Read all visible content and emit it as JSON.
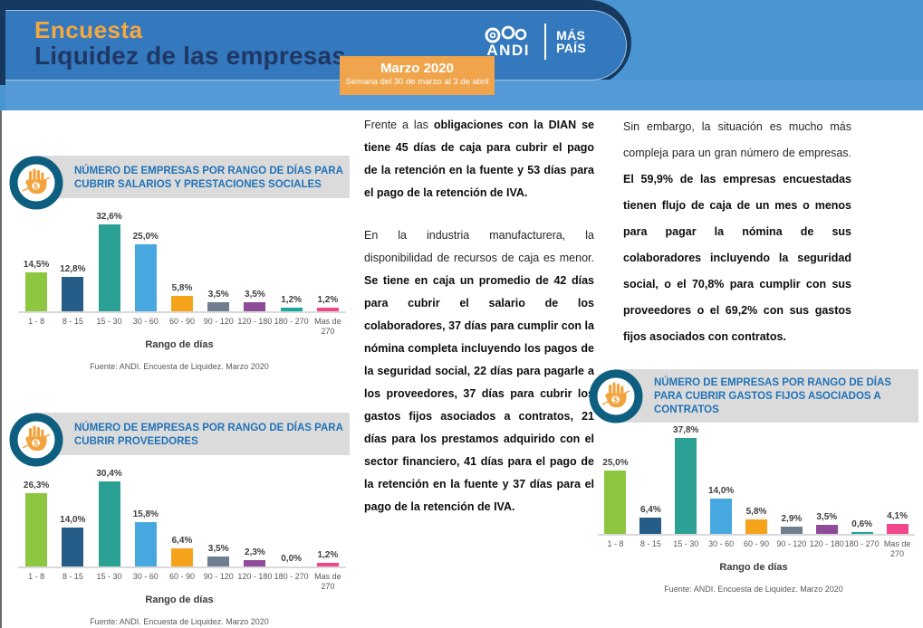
{
  "header": {
    "title_line1": "Encuesta",
    "title_line2": "Liquidez de las empresas",
    "date_box": {
      "title": "Marzo 2020",
      "subtitle": "Semana del 30 de marzo al 3 de abril"
    },
    "logo": {
      "brand": "ANDI",
      "tagline_line1": "MÁS",
      "tagline_line2": "PAÍS"
    }
  },
  "colors": {
    "banner_blue": "#3478BD",
    "header_bg": "#4A96D2",
    "strip_blue": "#549AD6",
    "navy": "#16395F",
    "accent_orange": "#F0A44B",
    "title_navy": "#1F3765",
    "title_orange": "#F5A83F",
    "chart_title_blue": "#2173B8",
    "chart_header_gray": "#DBDBDB",
    "icon_ring": "#0E5F7F",
    "icon_hand": "#F2A33C"
  },
  "bar_colors": [
    "#8DC63F",
    "#255C88",
    "#2BA094",
    "#47A8DF",
    "#F5A31B",
    "#6F7E8F",
    "#8E4B97",
    "#17A89B",
    "#F2478C"
  ],
  "chart_data": [
    {
      "type": "bar",
      "title": "NÚMERO DE EMPRESAS POR RANGO DE DÍAS PARA CUBRIR SALARIOS Y PRESTACIONES SOCIALES",
      "categories": [
        "1 - 8",
        "8 - 15",
        "15 - 30",
        "30 - 60",
        "60 - 90",
        "90 - 120",
        "120 - 180",
        "180 - 270",
        "Mas de 270"
      ],
      "values": [
        14.5,
        12.8,
        32.6,
        25.0,
        5.8,
        3.5,
        3.5,
        1.2,
        1.2
      ],
      "labels": [
        "14,5%",
        "12,8%",
        "32,6%",
        "25,0%",
        "5,8%",
        "3,5%",
        "3,5%",
        "1,2%",
        "1,2%"
      ],
      "xlabel": "Rango de días",
      "source": "Fuente: ANDI. Encuesta de Liquidez. Marzo 2020",
      "ylim": [
        0,
        35
      ],
      "grid": false,
      "legend": "none"
    },
    {
      "type": "bar",
      "title": "NÚMERO DE EMPRESAS POR RANGO DE DÍAS PARA CUBRIR PROVEEDORES",
      "categories": [
        "1 - 8",
        "8 - 15",
        "15 - 30",
        "30 - 60",
        "60 - 90",
        "90 - 120",
        "120 - 180",
        "180 - 270",
        "Mas de 270"
      ],
      "values": [
        26.3,
        14.0,
        30.4,
        15.8,
        6.4,
        3.5,
        2.3,
        0.0,
        1.2
      ],
      "labels": [
        "26,3%",
        "14,0%",
        "30,4%",
        "15,8%",
        "6,4%",
        "3,5%",
        "2,3%",
        "0,0%",
        "1,2%"
      ],
      "xlabel": "Rango de días",
      "source": "Fuente: ANDI. Encuesta de Liquidez. Marzo 2020",
      "ylim": [
        0,
        32
      ],
      "grid": false,
      "legend": "none"
    },
    {
      "type": "bar",
      "title": "NÚMERO DE EMPRESAS POR RANGO DE DÍAS PARA CUBRIR GASTOS FIJOS ASOCIADOS A CONTRATOS",
      "categories": [
        "1 - 8",
        "8 - 15",
        "15 - 30",
        "30 - 60",
        "60 - 90",
        "90 - 120",
        "120 - 180",
        "180 - 270",
        "Mas de 270"
      ],
      "values": [
        25.0,
        6.4,
        37.8,
        14.0,
        5.8,
        2.9,
        3.5,
        0.6,
        4.1
      ],
      "labels": [
        "25,0%",
        "6,4%",
        "37,8%",
        "14,0%",
        "5,8%",
        "2,9%",
        "3,5%",
        "0,6%",
        "4,1%"
      ],
      "xlabel": "Rango de días",
      "source": "Fuente: ANDI. Encuesta de Liquidez. Marzo 2020",
      "ylim": [
        0,
        40
      ],
      "grid": false,
      "legend": "none"
    }
  ],
  "text_columns": {
    "middle": [
      [
        {
          "text": "Frente a las ",
          "bold": false
        },
        {
          "text": "obligaciones con la DIAN se tiene 45 días de caja para cubrir el pago de la retención en la fuente y 53 días para el pago de la retención de IVA.",
          "bold": true
        }
      ],
      [
        {
          "text": "En la industria manufacturera, la disponibilidad de recursos de caja es menor. ",
          "bold": false
        },
        {
          "text": "Se tiene en caja un promedio de 42 días para cubrir el salario de los colaboradores, 37 días para cumplir con la nómina completa incluyendo los pagos de la seguridad social, 22 días para pagarle a los proveedores, 37 días para cubrir los gastos fijos asociados a contratos, 21 días para los prestamos adquirido con el sector financiero, 41 días para el pago de la retención en la fuente y 37 días para el pago de la retención de IVA.",
          "bold": true
        }
      ]
    ],
    "right": [
      [
        {
          "text": "Sin embargo, la situación es mucho más compleja para un gran número de empresas. ",
          "bold": false
        },
        {
          "text": "El 59,9% de las empresas encuestadas tienen flujo de caja de un mes o menos para pagar la nómina de sus colaboradores incluyendo la seguridad social, o el 70,8% para cumplir con sus proveedores o el 69,2% con sus gastos fijos asociados con contratos.",
          "bold": true
        }
      ]
    ]
  }
}
